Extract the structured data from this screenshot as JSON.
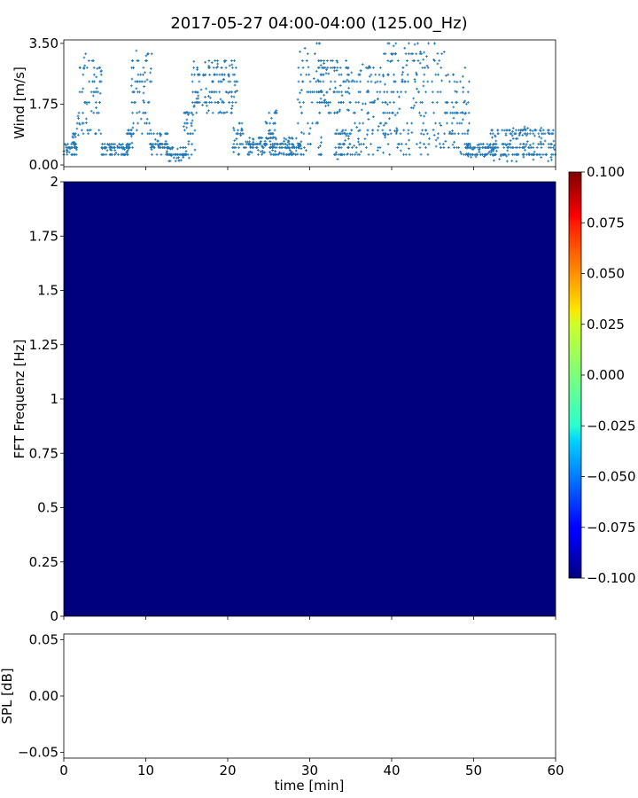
{
  "figure": {
    "title": "2017-05-27 04:00-04:00 (125.00_Hz)"
  },
  "chart_data": [
    {
      "type": "scatter",
      "panel": "wind",
      "ylabel": "Wind [m/s]",
      "xlim": [
        0,
        60
      ],
      "ylim": [
        -0.05,
        3.6
      ],
      "yticks": [
        "0.00",
        "1.75",
        "3.50"
      ],
      "ytick_values": [
        0,
        1.75,
        3.5
      ],
      "marker_color": "#1f77b4",
      "segments": [
        {
          "x": [
            0.0,
            1.6
          ],
          "lo": 0.3,
          "hi": 0.6
        },
        {
          "x": [
            1.0,
            1.6
          ],
          "lo": 0.6,
          "hi": 1.0
        },
        {
          "x": [
            1.6,
            4.6
          ],
          "lo": 0.8,
          "hi": 3.2
        },
        {
          "x": [
            4.6,
            8.0
          ],
          "lo": 0.3,
          "hi": 0.6
        },
        {
          "x": [
            7.6,
            8.5
          ],
          "lo": 0.4,
          "hi": 1.2
        },
        {
          "x": [
            8.2,
            10.8
          ],
          "lo": 0.8,
          "hi": 3.3
        },
        {
          "x": [
            10.5,
            12.8
          ],
          "lo": 0.3,
          "hi": 0.9
        },
        {
          "x": [
            12.5,
            15.0
          ],
          "lo": 0.1,
          "hi": 0.5
        },
        {
          "x": [
            14.6,
            16.0
          ],
          "lo": 0.2,
          "hi": 1.6
        },
        {
          "x": [
            15.6,
            21.2
          ],
          "lo": 1.5,
          "hi": 3.0
        },
        {
          "x": [
            20.6,
            22.0
          ],
          "lo": 0.3,
          "hi": 1.2
        },
        {
          "x": [
            22.0,
            29.0
          ],
          "lo": 0.3,
          "hi": 0.8
        },
        {
          "x": [
            24.5,
            26.0
          ],
          "lo": 0.5,
          "hi": 1.6
        },
        {
          "x": [
            28.5,
            31.5
          ],
          "lo": 0.3,
          "hi": 3.5
        },
        {
          "x": [
            31.0,
            35.0
          ],
          "lo": 1.5,
          "hi": 3.0
        },
        {
          "x": [
            33.0,
            35.0
          ],
          "lo": 0.1,
          "hi": 1.0
        },
        {
          "x": [
            35.0,
            39.0
          ],
          "lo": 0.2,
          "hi": 2.9
        },
        {
          "x": [
            39.0,
            46.5
          ],
          "lo": 0.3,
          "hi": 3.5
        },
        {
          "x": [
            46.5,
            49.5
          ],
          "lo": 0.3,
          "hi": 2.8
        },
        {
          "x": [
            49.0,
            53.0
          ],
          "lo": 0.2,
          "hi": 0.6
        },
        {
          "x": [
            52.0,
            60.0
          ],
          "lo": 0.1,
          "hi": 1.1
        }
      ]
    },
    {
      "type": "heatmap",
      "panel": "spectrogram",
      "ylabel": "FFT Frequenz [Hz]",
      "xlim": [
        0,
        60
      ],
      "ylim": [
        0,
        2
      ],
      "yticks": [
        "0",
        "0.25",
        "0.5",
        "0.75",
        "1",
        "1.25",
        "1.5",
        "1.75",
        "2"
      ],
      "ytick_values": [
        0,
        0.25,
        0.5,
        0.75,
        1,
        1.25,
        1.5,
        1.75,
        2
      ],
      "value": -0.1,
      "fill_color": "#00007f",
      "colorbar": {
        "colormap": "jet",
        "range": [
          -0.1,
          0.1
        ],
        "ticks": [
          "0.100",
          "0.075",
          "0.050",
          "0.025",
          "0.000",
          "−0.025",
          "−0.050",
          "−0.075",
          "−0.100"
        ],
        "tick_values": [
          0.1,
          0.075,
          0.05,
          0.025,
          0,
          -0.025,
          -0.05,
          -0.075,
          -0.1
        ]
      }
    },
    {
      "type": "line",
      "panel": "spl",
      "ylabel": "SPL [dB]",
      "xlabel": "time [min]",
      "xlim": [
        0,
        60
      ],
      "ylim": [
        -0.055,
        0.055
      ],
      "xticks": [
        "0",
        "10",
        "20",
        "30",
        "40",
        "50",
        "60"
      ],
      "xtick_values": [
        0,
        10,
        20,
        30,
        40,
        50,
        60
      ],
      "yticks": [
        "0.05",
        "0.00",
        "−0.05"
      ],
      "ytick_values": [
        0.05,
        0,
        -0.05
      ],
      "series": []
    }
  ]
}
